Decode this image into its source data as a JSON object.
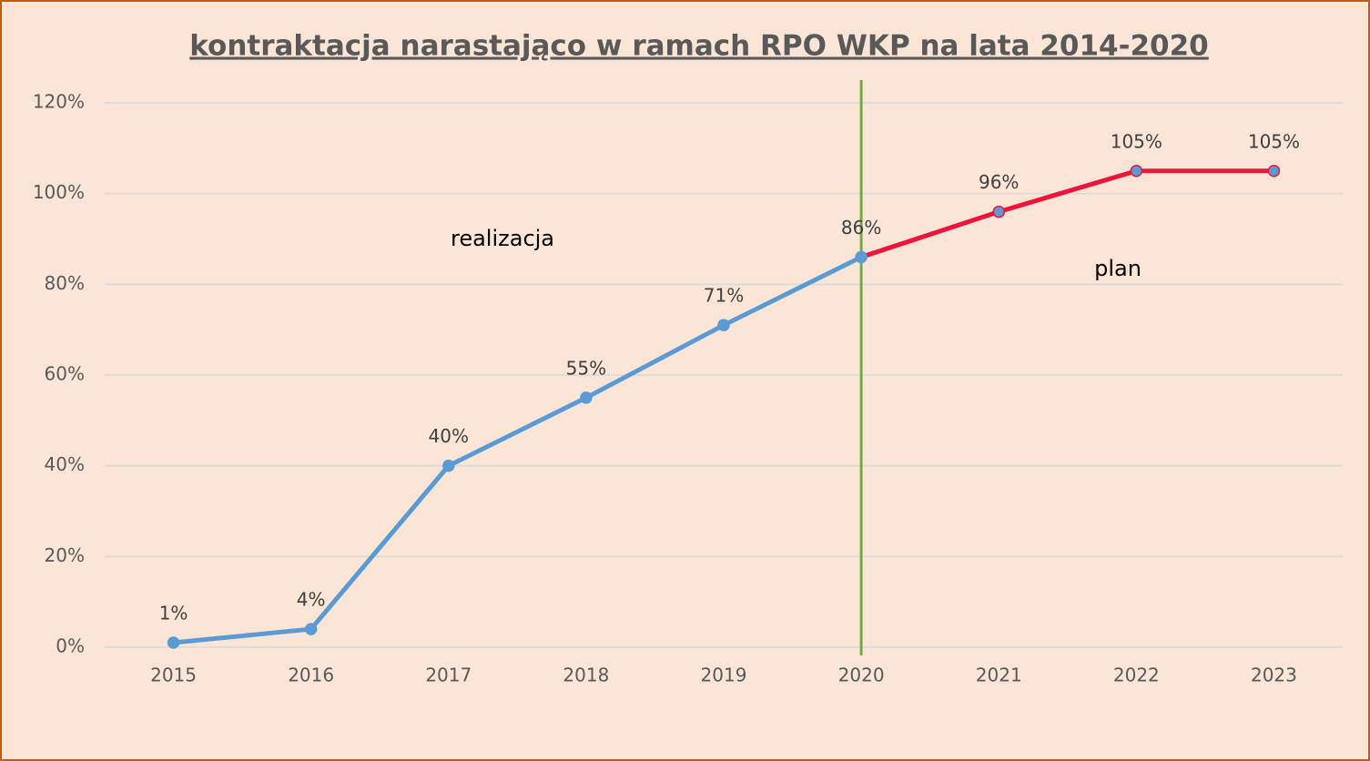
{
  "chart_data": {
    "type": "line",
    "title": "kontraktacja narastająco w ramach RPO WKP na lata 2014-2020",
    "categories": [
      "2015",
      "2016",
      "2017",
      "2018",
      "2019",
      "2020",
      "2021",
      "2022",
      "2023"
    ],
    "series": [
      {
        "name": "realizacja",
        "color": "#5b9bd5",
        "marker_color": "#5b9bd5",
        "marker_stroke": "#5b9bd5",
        "values": [
          1,
          4,
          40,
          55,
          71,
          86,
          null,
          null,
          null
        ],
        "value_labels": [
          "1%",
          "4%",
          "40%",
          "55%",
          "71%",
          "86%",
          null,
          null,
          null
        ]
      },
      {
        "name": "plan",
        "color": "#f0143c",
        "marker_color": "#5b9bd5",
        "marker_stroke": "#f0143c",
        "values": [
          null,
          null,
          null,
          null,
          null,
          86,
          96,
          105,
          105
        ],
        "value_labels": [
          null,
          null,
          null,
          null,
          null,
          null,
          "96%",
          "105%",
          "105%"
        ]
      }
    ],
    "ylim": [
      0,
      120
    ],
    "yticks": [
      {
        "value": 0,
        "label": "0%"
      },
      {
        "value": 20,
        "label": "20%"
      },
      {
        "value": 40,
        "label": "40%"
      },
      {
        "value": 60,
        "label": "60%"
      },
      {
        "value": 80,
        "label": "80%"
      },
      {
        "value": 100,
        "label": "100%"
      },
      {
        "value": 120,
        "label": "120%"
      }
    ],
    "grid": true,
    "vline_at": "2020",
    "vline_color": "#70ad47"
  }
}
